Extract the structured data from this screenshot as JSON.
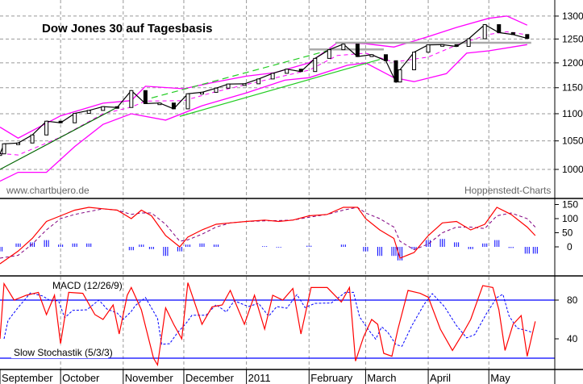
{
  "chart_data": [
    {
      "type": "candlestick",
      "title": "Dow Jones 30 auf Tagesbasis",
      "credit_left": "www.chartbuero.de",
      "credit_right": "Hoppenstedt-Charts",
      "y_scale": "log",
      "ylim": [
        9700,
        13300
      ],
      "y_ticks": [
        10000,
        10500,
        11000,
        11500,
        12000,
        12500,
        13000
      ],
      "grid": true,
      "colors": {
        "price": "#000000",
        "bands": "#ff00ff",
        "trend_dark": "#006600",
        "trend": "#22cc22",
        "resistance": "#aaaaaa"
      },
      "close": [
        [
          "2010-09-01",
          10270
        ],
        [
          "2010-09-03",
          10448
        ],
        [
          "2010-09-10",
          10462
        ],
        [
          "2010-09-17",
          10607
        ],
        [
          "2010-09-24",
          10860
        ],
        [
          "2010-10-01",
          10830
        ],
        [
          "2010-10-08",
          11006
        ],
        [
          "2010-10-15",
          11062
        ],
        [
          "2010-10-22",
          11133
        ],
        [
          "2010-10-29",
          11118
        ],
        [
          "2010-11-05",
          11444
        ],
        [
          "2010-11-12",
          11192
        ],
        [
          "2010-11-19",
          11203
        ],
        [
          "2010-11-26",
          11092
        ],
        [
          "2010-12-03",
          11382
        ],
        [
          "2010-12-10",
          11410
        ],
        [
          "2010-12-17",
          11492
        ],
        [
          "2010-12-23",
          11573
        ],
        [
          "2010-12-31",
          11578
        ],
        [
          "2011-01-07",
          11674
        ],
        [
          "2011-01-14",
          11787
        ],
        [
          "2011-01-21",
          11871
        ],
        [
          "2011-01-28",
          11823
        ],
        [
          "2011-02-04",
          12092
        ],
        [
          "2011-02-11",
          12273
        ],
        [
          "2011-02-18",
          12391
        ],
        [
          "2011-02-25",
          12130
        ],
        [
          "2011-03-04",
          12169
        ],
        [
          "2011-03-11",
          12044
        ],
        [
          "2011-03-16",
          11613
        ],
        [
          "2011-03-18",
          11858
        ],
        [
          "2011-03-25",
          12221
        ],
        [
          "2011-04-01",
          12376
        ],
        [
          "2011-04-08",
          12380
        ],
        [
          "2011-04-15",
          12342
        ],
        [
          "2011-04-21",
          12505
        ],
        [
          "2011-04-29",
          12811
        ],
        [
          "2011-05-06",
          12638
        ],
        [
          "2011-05-13",
          12596
        ],
        [
          "2011-05-20",
          12512
        ]
      ],
      "bollinger_upper": [
        [
          "2010-09-01",
          10750
        ],
        [
          "2010-09-10",
          10550
        ],
        [
          "2010-10-01",
          10960
        ],
        [
          "2010-10-22",
          11200
        ],
        [
          "2010-11-05",
          11250
        ],
        [
          "2010-11-12",
          11530
        ],
        [
          "2010-12-01",
          11480
        ],
        [
          "2010-12-15",
          11600
        ],
        [
          "2011-01-01",
          11730
        ],
        [
          "2011-01-15",
          11800
        ],
        [
          "2011-02-01",
          12000
        ],
        [
          "2011-02-15",
          12420
        ],
        [
          "2011-03-01",
          12400
        ],
        [
          "2011-03-15",
          12330
        ],
        [
          "2011-04-01",
          12550
        ],
        [
          "2011-04-15",
          12750
        ],
        [
          "2011-05-01",
          12950
        ],
        [
          "2011-05-10",
          13000
        ],
        [
          "2011-05-20",
          12800
        ]
      ],
      "bollinger_lower": [
        [
          "2010-09-01",
          9800
        ],
        [
          "2010-09-10",
          9950
        ],
        [
          "2010-09-24",
          9950
        ],
        [
          "2010-10-08",
          10400
        ],
        [
          "2010-10-22",
          10800
        ],
        [
          "2010-11-05",
          11000
        ],
        [
          "2010-11-22",
          10880
        ],
        [
          "2010-12-10",
          11150
        ],
        [
          "2011-01-01",
          11400
        ],
        [
          "2011-01-20",
          11650
        ],
        [
          "2011-02-01",
          11700
        ],
        [
          "2011-02-20",
          11950
        ],
        [
          "2011-03-01",
          12000
        ],
        [
          "2011-03-15",
          11700
        ],
        [
          "2011-03-25",
          11620
        ],
        [
          "2011-04-10",
          11780
        ],
        [
          "2011-04-20",
          12200
        ],
        [
          "2011-05-01",
          12250
        ],
        [
          "2011-05-20",
          12380
        ]
      ],
      "annotations": [
        {
          "kind": "trend_dark",
          "from": [
            "2010-09-01",
            10000
          ],
          "to": [
            "2010-10-28",
            11100
          ]
        },
        {
          "kind": "trend",
          "from": [
            "2010-11-29",
            10950
          ],
          "to": [
            "2011-03-08",
            12070
          ]
        },
        {
          "kind": "trend_dashed",
          "from": [
            "2010-11-15",
            11300
          ],
          "to": [
            "2011-02-10",
            12250
          ]
        },
        {
          "kind": "resistance",
          "from": [
            "2011-02-01",
            12280
          ],
          "to": [
            "2011-03-10",
            12280
          ]
        },
        {
          "kind": "resistance",
          "from": [
            "2011-02-14",
            12420
          ],
          "to": [
            "2011-05-22",
            12420
          ]
        }
      ]
    },
    {
      "type": "line",
      "label": "MACD (12/26/9)",
      "ylim": [
        -90,
        170
      ],
      "y_ticks": [
        0,
        50,
        100,
        150
      ],
      "colors": {
        "macd": "#ff0000",
        "signal": "#800080",
        "histogram": "#0000ff"
      },
      "macd": [
        [
          "2010-09-01",
          -60
        ],
        [
          "2010-09-10",
          -15
        ],
        [
          "2010-09-17",
          30
        ],
        [
          "2010-09-24",
          90
        ],
        [
          "2010-10-01",
          110
        ],
        [
          "2010-10-08",
          130
        ],
        [
          "2010-10-15",
          140
        ],
        [
          "2010-10-22",
          135
        ],
        [
          "2010-10-29",
          130
        ],
        [
          "2010-11-05",
          100
        ],
        [
          "2010-11-10",
          130
        ],
        [
          "2010-11-15",
          110
        ],
        [
          "2010-11-22",
          40
        ],
        [
          "2010-11-29",
          0
        ],
        [
          "2010-12-03",
          35
        ],
        [
          "2010-12-10",
          60
        ],
        [
          "2010-12-17",
          80
        ],
        [
          "2010-12-24",
          85
        ],
        [
          "2011-01-01",
          90
        ],
        [
          "2011-01-10",
          95
        ],
        [
          "2011-01-17",
          90
        ],
        [
          "2011-01-24",
          95
        ],
        [
          "2011-02-01",
          110
        ],
        [
          "2011-02-10",
          115
        ],
        [
          "2011-02-18",
          140
        ],
        [
          "2011-02-25",
          140
        ],
        [
          "2011-03-01",
          100
        ],
        [
          "2011-03-08",
          60
        ],
        [
          "2011-03-15",
          30
        ],
        [
          "2011-03-18",
          -40
        ],
        [
          "2011-03-25",
          -20
        ],
        [
          "2011-04-01",
          40
        ],
        [
          "2011-04-08",
          85
        ],
        [
          "2011-04-15",
          90
        ],
        [
          "2011-04-22",
          60
        ],
        [
          "2011-04-29",
          80
        ],
        [
          "2011-05-05",
          140
        ],
        [
          "2011-05-12",
          115
        ],
        [
          "2011-05-20",
          70
        ],
        [
          "2011-05-24",
          40
        ]
      ],
      "signal": [
        [
          "2010-09-01",
          -40
        ],
        [
          "2010-09-10",
          -30
        ],
        [
          "2010-09-17",
          10
        ],
        [
          "2010-09-24",
          60
        ],
        [
          "2010-10-01",
          100
        ],
        [
          "2010-10-08",
          115
        ],
        [
          "2010-10-15",
          125
        ],
        [
          "2010-10-22",
          135
        ],
        [
          "2010-10-29",
          130
        ],
        [
          "2010-11-05",
          115
        ],
        [
          "2010-11-10",
          120
        ],
        [
          "2010-11-15",
          120
        ],
        [
          "2010-11-22",
          80
        ],
        [
          "2010-11-29",
          20
        ],
        [
          "2010-12-03",
          25
        ],
        [
          "2010-12-10",
          45
        ],
        [
          "2010-12-17",
          70
        ],
        [
          "2010-12-24",
          85
        ],
        [
          "2011-01-01",
          90
        ],
        [
          "2011-01-10",
          92
        ],
        [
          "2011-01-17",
          93
        ],
        [
          "2011-01-24",
          95
        ],
        [
          "2011-02-01",
          105
        ],
        [
          "2011-02-10",
          115
        ],
        [
          "2011-02-18",
          130
        ],
        [
          "2011-02-25",
          140
        ],
        [
          "2011-03-01",
          120
        ],
        [
          "2011-03-08",
          100
        ],
        [
          "2011-03-15",
          70
        ],
        [
          "2011-03-18",
          20
        ],
        [
          "2011-03-25",
          -10
        ],
        [
          "2011-04-01",
          10
        ],
        [
          "2011-04-08",
          50
        ],
        [
          "2011-04-15",
          70
        ],
        [
          "2011-04-22",
          70
        ],
        [
          "2011-04-29",
          65
        ],
        [
          "2011-05-05",
          110
        ],
        [
          "2011-05-12",
          120
        ],
        [
          "2011-05-20",
          100
        ],
        [
          "2011-05-24",
          70
        ]
      ]
    },
    {
      "type": "line",
      "label": "Slow Stochastik (5/3/3)",
      "ylim": [
        0,
        105
      ],
      "y_ticks": [
        40,
        80
      ],
      "levels": [
        20,
        80
      ],
      "colors": {
        "k": "#ff0000",
        "d": "#0000ff",
        "levels": "#0000ff"
      },
      "k": [
        [
          "2010-09-01",
          40
        ],
        [
          "2010-09-03",
          97
        ],
        [
          "2010-09-08",
          80
        ],
        [
          "2010-09-14",
          85
        ],
        [
          "2010-09-20",
          88
        ],
        [
          "2010-09-24",
          65
        ],
        [
          "2010-09-28",
          85
        ],
        [
          "2010-10-01",
          35
        ],
        [
          "2010-10-05",
          88
        ],
        [
          "2010-10-12",
          87
        ],
        [
          "2010-10-18",
          65
        ],
        [
          "2010-10-22",
          60
        ],
        [
          "2010-10-27",
          75
        ],
        [
          "2010-10-30",
          45
        ],
        [
          "2010-11-03",
          85
        ],
        [
          "2010-11-05",
          93
        ],
        [
          "2010-11-10",
          70
        ],
        [
          "2010-11-16",
          20
        ],
        [
          "2010-11-18",
          13
        ],
        [
          "2010-11-22",
          72
        ],
        [
          "2010-11-26",
          55
        ],
        [
          "2010-11-30",
          40
        ],
        [
          "2010-12-03",
          98
        ],
        [
          "2010-12-10",
          55
        ],
        [
          "2010-12-15",
          73
        ],
        [
          "2010-12-20",
          75
        ],
        [
          "2010-12-24",
          90
        ],
        [
          "2010-12-31",
          55
        ],
        [
          "2011-01-05",
          85
        ],
        [
          "2011-01-10",
          50
        ],
        [
          "2011-01-14",
          85
        ],
        [
          "2011-01-19",
          80
        ],
        [
          "2011-01-24",
          92
        ],
        [
          "2011-01-28",
          45
        ],
        [
          "2011-02-02",
          93
        ],
        [
          "2011-02-10",
          93
        ],
        [
          "2011-02-17",
          78
        ],
        [
          "2011-02-21",
          93
        ],
        [
          "2011-02-24",
          17
        ],
        [
          "2011-02-28",
          42
        ],
        [
          "2011-03-04",
          60
        ],
        [
          "2011-03-07",
          55
        ],
        [
          "2011-03-10",
          25
        ],
        [
          "2011-03-14",
          22
        ],
        [
          "2011-03-17",
          50
        ],
        [
          "2011-03-22",
          90
        ],
        [
          "2011-03-28",
          87
        ],
        [
          "2011-04-01",
          83
        ],
        [
          "2011-04-07",
          50
        ],
        [
          "2011-04-13",
          28
        ],
        [
          "2011-04-18",
          45
        ],
        [
          "2011-04-22",
          60
        ],
        [
          "2011-04-28",
          95
        ],
        [
          "2011-05-03",
          93
        ],
        [
          "2011-05-06",
          70
        ],
        [
          "2011-05-09",
          28
        ],
        [
          "2011-05-13",
          55
        ],
        [
          "2011-05-17",
          64
        ],
        [
          "2011-05-20",
          22
        ],
        [
          "2011-05-24",
          58
        ]
      ]
    }
  ],
  "x_axis": {
    "months": [
      {
        "label": "September",
        "date": "2010-09-01"
      },
      {
        "label": "October",
        "date": "2010-10-01"
      },
      {
        "label": "November",
        "date": "2010-11-01"
      },
      {
        "label": "December",
        "date": "2010-12-01"
      },
      {
        "label": "2011",
        "date": "2011-01-01"
      },
      {
        "label": "February",
        "date": "2011-02-01"
      },
      {
        "label": "March",
        "date": "2011-03-01"
      },
      {
        "label": "April",
        "date": "2011-04-01"
      },
      {
        "label": "May",
        "date": "2011-05-01"
      }
    ]
  }
}
